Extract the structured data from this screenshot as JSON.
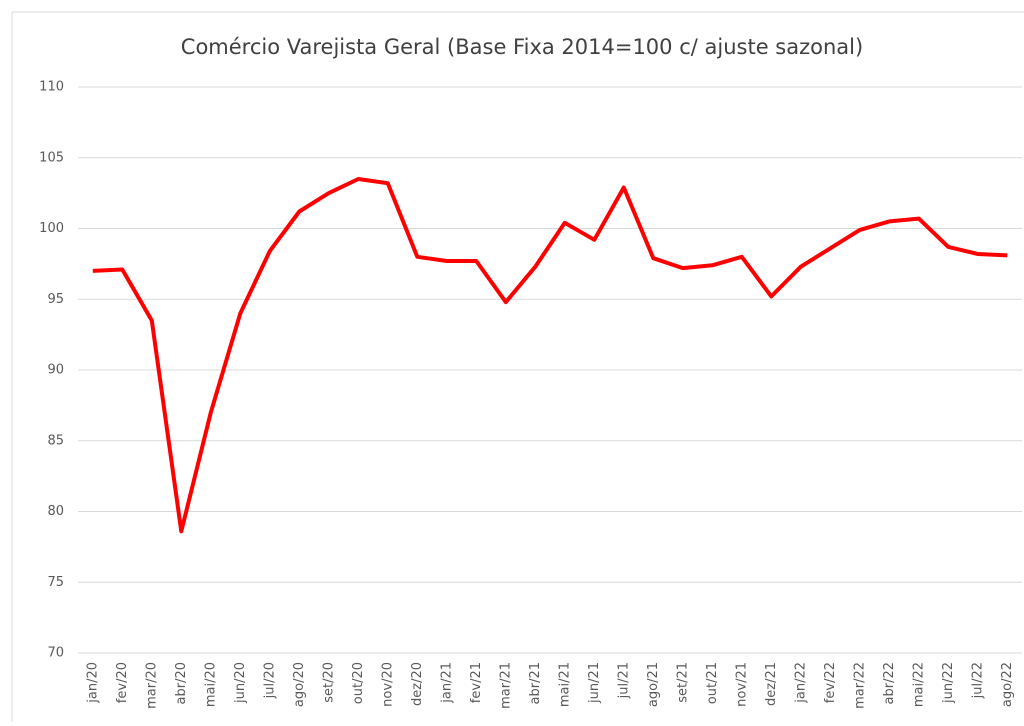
{
  "chart_data": {
    "type": "line",
    "title": "Comércio Varejista Geral (Base Fixa 2014=100 c/ ajuste sazonal)",
    "categories": [
      "jan/20",
      "fev/20",
      "mar/20",
      "abr/20",
      "mai/20",
      "jun/20",
      "jul/20",
      "ago/20",
      "set/20",
      "out/20",
      "nov/20",
      "dez/20",
      "jan/21",
      "fev/21",
      "mar/21",
      "abr/21",
      "mai/21",
      "jun/21",
      "jul/21",
      "ago/21",
      "set/21",
      "out/21",
      "nov/21",
      "dez/21",
      "jan/22",
      "fev/22",
      "mar/22",
      "abr/22",
      "mai/22",
      "jun/22",
      "jul/22",
      "ago/22"
    ],
    "values": [
      97.0,
      97.1,
      93.5,
      78.6,
      87.0,
      94.0,
      98.4,
      101.2,
      102.5,
      103.5,
      103.2,
      98.0,
      97.7,
      97.7,
      94.8,
      97.3,
      100.4,
      99.2,
      102.9,
      97.9,
      97.2,
      97.4,
      98.0,
      95.2,
      97.3,
      98.6,
      99.9,
      100.5,
      100.7,
      98.7,
      98.2,
      98.1
    ],
    "color": "#ff0000",
    "ylim": [
      70,
      110
    ],
    "yticks": [
      70,
      75,
      80,
      85,
      90,
      95,
      100,
      105,
      110
    ],
    "grid": true
  }
}
